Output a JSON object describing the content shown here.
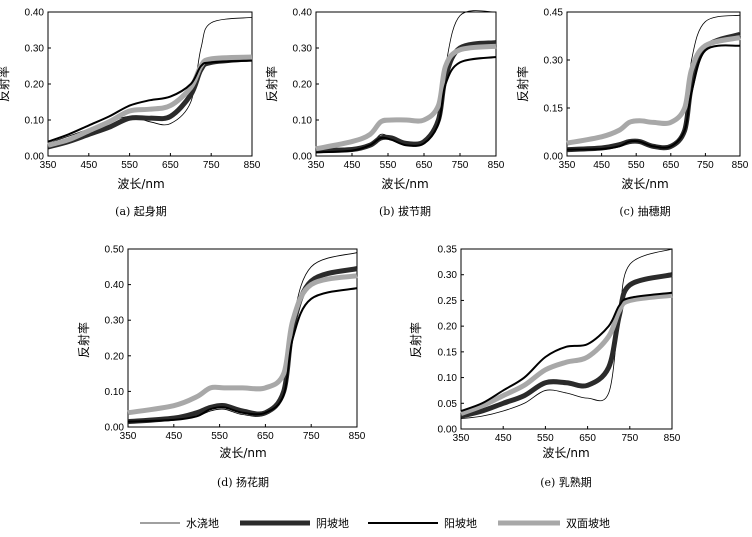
{
  "x_label": "波长/nm",
  "y_label": "反射率",
  "x_ticks": [
    350,
    450,
    550,
    650,
    750,
    850
  ],
  "legend": [
    {
      "label": "水浇地",
      "key": "shuijiao"
    },
    {
      "label": "阴坡地",
      "key": "yinpo"
    },
    {
      "label": "阳坡地",
      "key": "yangpo"
    },
    {
      "label": "双面坡地",
      "key": "shuangmian"
    }
  ],
  "styles": {
    "shuijiao": {
      "color": "#000000",
      "width": 0.8
    },
    "yinpo": {
      "color": "#2b2b2b",
      "width": 5
    },
    "yangpo": {
      "color": "#000000",
      "width": 2
    },
    "shuangmian": {
      "color": "#a8a8a8",
      "width": 5
    }
  },
  "chart_data": [
    {
      "type": "line",
      "caption": "(a) 起身期",
      "x": [
        350,
        400,
        450,
        500,
        550,
        600,
        650,
        700,
        725,
        750,
        850
      ],
      "ylim": [
        0,
        0.4
      ],
      "y_ticks": [
        "0.00",
        "0.10",
        "0.20",
        "0.30",
        "0.40"
      ],
      "series": [
        {
          "name": "水浇地",
          "values": [
            0.035,
            0.055,
            0.075,
            0.095,
            0.11,
            0.095,
            0.09,
            0.15,
            0.3,
            0.37,
            0.385
          ]
        },
        {
          "name": "阴坡地",
          "values": [
            0.025,
            0.04,
            0.06,
            0.08,
            0.105,
            0.105,
            0.11,
            0.17,
            0.24,
            0.26,
            0.27
          ]
        },
        {
          "name": "阳坡地",
          "values": [
            0.04,
            0.06,
            0.085,
            0.11,
            0.14,
            0.155,
            0.165,
            0.2,
            0.25,
            0.26,
            0.265
          ]
        },
        {
          "name": "双面坡地",
          "values": [
            0.03,
            0.045,
            0.07,
            0.095,
            0.125,
            0.13,
            0.14,
            0.19,
            0.25,
            0.27,
            0.275
          ]
        }
      ]
    },
    {
      "type": "line",
      "caption": "(b) 拔节期",
      "x": [
        350,
        450,
        500,
        530,
        560,
        600,
        650,
        690,
        710,
        750,
        850
      ],
      "ylim": [
        0,
        0.4
      ],
      "y_ticks": [
        "0.00",
        "0.10",
        "0.20",
        "0.30",
        "0.40"
      ],
      "series": [
        {
          "name": "水浇地",
          "values": [
            0.01,
            0.015,
            0.03,
            0.06,
            0.05,
            0.035,
            0.04,
            0.1,
            0.25,
            0.39,
            0.4
          ]
        },
        {
          "name": "阴坡地",
          "values": [
            0.015,
            0.018,
            0.03,
            0.05,
            0.05,
            0.035,
            0.04,
            0.1,
            0.22,
            0.3,
            0.315
          ]
        },
        {
          "name": "阳坡地",
          "values": [
            0.01,
            0.015,
            0.03,
            0.05,
            0.045,
            0.03,
            0.035,
            0.09,
            0.2,
            0.26,
            0.275
          ]
        },
        {
          "name": "双面坡地",
          "values": [
            0.02,
            0.04,
            0.06,
            0.095,
            0.1,
            0.1,
            0.1,
            0.14,
            0.25,
            0.295,
            0.305
          ]
        }
      ]
    },
    {
      "type": "line",
      "caption": "(c) 抽穗期",
      "x": [
        350,
        450,
        500,
        530,
        560,
        600,
        650,
        690,
        710,
        750,
        850
      ],
      "ylim": [
        0,
        0.45
      ],
      "y_ticks": [
        "0.00",
        "0.15",
        "0.30",
        "0.45"
      ],
      "series": [
        {
          "name": "水浇地",
          "values": [
            0.02,
            0.025,
            0.035,
            0.05,
            0.05,
            0.03,
            0.03,
            0.1,
            0.3,
            0.42,
            0.44
          ]
        },
        {
          "name": "阴坡地",
          "values": [
            0.02,
            0.025,
            0.035,
            0.045,
            0.045,
            0.03,
            0.03,
            0.08,
            0.22,
            0.34,
            0.38
          ]
        },
        {
          "name": "阳坡地",
          "values": [
            0.02,
            0.022,
            0.03,
            0.045,
            0.045,
            0.03,
            0.03,
            0.08,
            0.2,
            0.33,
            0.345
          ]
        },
        {
          "name": "双面坡地",
          "values": [
            0.04,
            0.06,
            0.08,
            0.105,
            0.11,
            0.105,
            0.105,
            0.15,
            0.27,
            0.345,
            0.37
          ]
        }
      ]
    },
    {
      "type": "line",
      "caption": "(d) 扬花期",
      "x": [
        350,
        450,
        500,
        530,
        560,
        600,
        650,
        690,
        710,
        750,
        850
      ],
      "ylim": [
        0,
        0.5
      ],
      "y_ticks": [
        "0.00",
        "0.10",
        "0.20",
        "0.30",
        "0.40",
        "0.50"
      ],
      "series": [
        {
          "name": "水浇地",
          "values": [
            0.015,
            0.02,
            0.03,
            0.045,
            0.05,
            0.035,
            0.035,
            0.1,
            0.3,
            0.45,
            0.49
          ]
        },
        {
          "name": "阴坡地",
          "values": [
            0.015,
            0.025,
            0.04,
            0.055,
            0.06,
            0.045,
            0.04,
            0.1,
            0.28,
            0.41,
            0.445
          ]
        },
        {
          "name": "阳坡地",
          "values": [
            0.015,
            0.02,
            0.03,
            0.05,
            0.055,
            0.04,
            0.04,
            0.09,
            0.25,
            0.36,
            0.39
          ]
        },
        {
          "name": "双面坡地",
          "values": [
            0.04,
            0.06,
            0.085,
            0.11,
            0.11,
            0.11,
            0.11,
            0.15,
            0.3,
            0.4,
            0.425
          ]
        }
      ]
    },
    {
      "type": "line",
      "caption": "(e) 乳熟期",
      "x": [
        350,
        400,
        450,
        500,
        550,
        600,
        650,
        700,
        725,
        750,
        850
      ],
      "ylim": [
        0,
        0.35
      ],
      "y_ticks": [
        "0.00",
        "0.05",
        "0.10",
        "0.15",
        "0.20",
        "0.25",
        "0.30",
        "0.35"
      ],
      "series": [
        {
          "name": "水浇地",
          "values": [
            0.02,
            0.025,
            0.035,
            0.05,
            0.075,
            0.07,
            0.06,
            0.07,
            0.22,
            0.32,
            0.35
          ]
        },
        {
          "name": "阴坡地",
          "values": [
            0.025,
            0.035,
            0.05,
            0.065,
            0.09,
            0.09,
            0.085,
            0.12,
            0.22,
            0.28,
            0.3
          ]
        },
        {
          "name": "阳坡地",
          "values": [
            0.035,
            0.05,
            0.075,
            0.1,
            0.14,
            0.16,
            0.165,
            0.2,
            0.24,
            0.255,
            0.265
          ]
        },
        {
          "name": "双面坡地",
          "values": [
            0.03,
            0.045,
            0.065,
            0.085,
            0.115,
            0.13,
            0.14,
            0.18,
            0.23,
            0.25,
            0.26
          ]
        }
      ]
    }
  ]
}
